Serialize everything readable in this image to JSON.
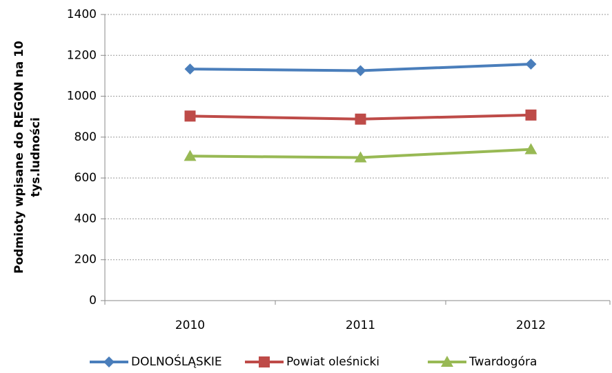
{
  "chart_data": {
    "type": "line",
    "ylabel": [
      "Podmioty wpisane do REGON na 10",
      "tys.ludności"
    ],
    "categories": [
      "2010",
      "2011",
      "2012"
    ],
    "series": [
      {
        "name": "DOLNOŚLĄSKIE",
        "color": "#4a7ebb",
        "marker": "diamond",
        "values": [
          1133,
          1125,
          1157
        ]
      },
      {
        "name": "Powiat oleśnicki",
        "color": "#be4b48",
        "marker": "square",
        "values": [
          903,
          888,
          908
        ]
      },
      {
        "name": "Twardogóra",
        "color": "#98b954",
        "marker": "triangle",
        "values": [
          707,
          700,
          740
        ]
      }
    ],
    "ylim": [
      0,
      1400
    ],
    "yticks": [
      0,
      200,
      400,
      600,
      800,
      1000,
      1200,
      1400
    ],
    "grid": true,
    "legend": "bottom"
  }
}
